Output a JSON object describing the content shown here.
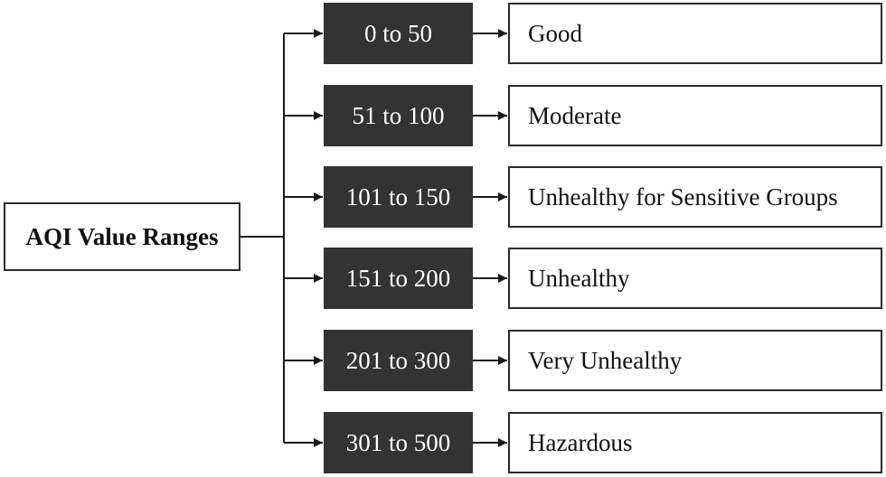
{
  "root": {
    "label": "AQI Value Ranges"
  },
  "rows": [
    {
      "range": "0 to 50",
      "category": "Good"
    },
    {
      "range": "51 to 100",
      "category": "Moderate"
    },
    {
      "range": "101 to 150",
      "category": "Unhealthy for Sensitive Groups"
    },
    {
      "range": "151 to 200",
      "category": "Unhealthy"
    },
    {
      "range": "201 to 300",
      "category": "Very Unhealthy"
    },
    {
      "range": "301 to 500",
      "category": "Hazardous"
    }
  ],
  "colors": {
    "range_fill": "#333333",
    "range_text": "#ffffff",
    "line": "#1a1a1a"
  }
}
